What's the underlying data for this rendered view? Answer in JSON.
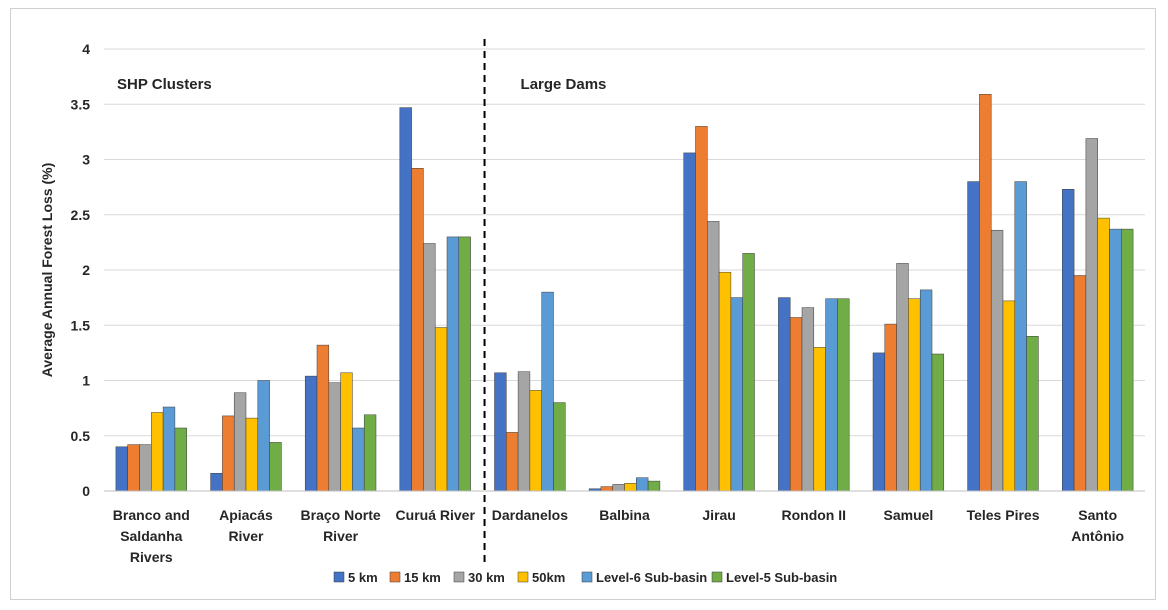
{
  "chart_data": {
    "type": "bar",
    "title": "",
    "xlabel": "",
    "ylabel": "Average Annual Forest Loss (%)",
    "ylim": [
      0,
      4
    ],
    "yticks": [
      "0",
      "0.5",
      "1",
      "1.5",
      "2",
      "2.5",
      "3",
      "3.5",
      "4"
    ],
    "grid": true,
    "legend_position": "bottom",
    "groups": [
      {
        "label": "SHP Clusters",
        "categories": 4
      },
      {
        "label": "Large Dams",
        "categories": 7
      }
    ],
    "categories": [
      [
        "Branco and",
        "Saldanha",
        "Rivers"
      ],
      [
        "Apiacás",
        "River"
      ],
      [
        "Braço Norte",
        "River"
      ],
      [
        "Curuá River"
      ],
      [
        "Dardanelos"
      ],
      [
        "Balbina"
      ],
      [
        "Jirau"
      ],
      [
        "Rondon II"
      ],
      [
        "Samuel"
      ],
      [
        "Teles Pires"
      ],
      [
        "Santo",
        "Antônio"
      ]
    ],
    "series": [
      {
        "name": "5 km",
        "color": "#4472C4",
        "values": [
          0.4,
          0.16,
          1.04,
          3.47,
          1.07,
          0.02,
          3.06,
          1.75,
          1.25,
          2.8,
          2.73
        ]
      },
      {
        "name": "15 km",
        "color": "#ED7D31",
        "values": [
          0.42,
          0.68,
          1.32,
          2.92,
          0.53,
          0.04,
          3.3,
          1.57,
          1.51,
          3.59,
          1.95
        ]
      },
      {
        "name": "30 km",
        "color": "#A5A5A5",
        "values": [
          0.42,
          0.89,
          0.98,
          2.24,
          1.08,
          0.06,
          2.44,
          1.66,
          2.06,
          2.36,
          3.19
        ]
      },
      {
        "name": "50km",
        "color": "#FFC000",
        "values": [
          0.71,
          0.66,
          1.07,
          1.48,
          0.91,
          0.07,
          1.98,
          1.3,
          1.74,
          1.72,
          2.47
        ]
      },
      {
        "name": "Level-6 Sub-basin",
        "color": "#5B9BD5",
        "values": [
          0.76,
          1.0,
          0.57,
          2.3,
          1.8,
          0.12,
          1.75,
          1.74,
          1.82,
          2.8,
          2.37
        ]
      },
      {
        "name": "Level-5 Sub-basin",
        "color": "#70AD47",
        "values": [
          0.57,
          0.44,
          0.69,
          2.3,
          0.8,
          0.09,
          2.15,
          1.74,
          1.24,
          1.4,
          2.37
        ]
      }
    ]
  }
}
